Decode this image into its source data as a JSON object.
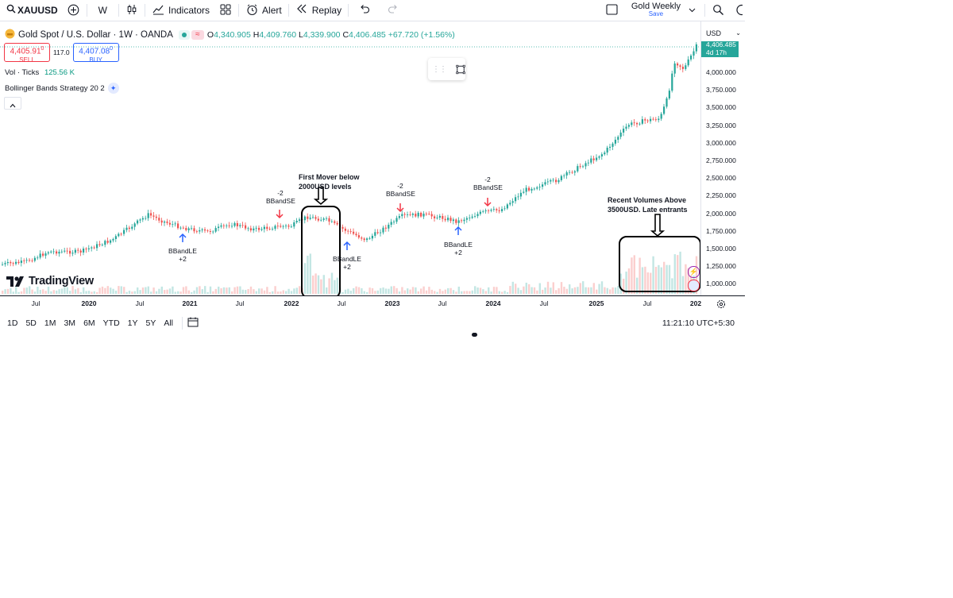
{
  "toolbar": {
    "symbol": "XAUUSD",
    "interval": "W",
    "indicators_label": "Indicators",
    "alert_label": "Alert",
    "replay_label": "Replay",
    "layout_name": "Gold Weekly",
    "save_label": "Save"
  },
  "legend": {
    "title": "Gold Spot / U.S. Dollar · 1W · OANDA",
    "open_label": "O",
    "open": "4,340.905",
    "high_label": "H",
    "high": "4,409.760",
    "low_label": "L",
    "low": "4,339.900",
    "close_label": "C",
    "close": "4,406.485",
    "change": "+67.720 (+1.56%)",
    "sell_price": "4,405.91",
    "sell_sup": "0",
    "sell_label": "SELL",
    "spread": "117.0",
    "buy_price": "4,407.08",
    "buy_sup": "0",
    "buy_label": "BUY",
    "vol_label": "Vol · Ticks",
    "vol_value": "125.56 K",
    "strategy_label": "Bollinger Bands Strategy 20 2"
  },
  "price_scale": {
    "currency": "USD",
    "labels": [
      "4,000.000",
      "3,750.000",
      "3,500.000",
      "3,250.000",
      "3,000.000",
      "2,750.000",
      "2,500.000",
      "2,250.000",
      "2,000.000",
      "1,750.000",
      "1,500.000",
      "1,250.000",
      "1,000.000"
    ],
    "current_price": "4,406.485",
    "countdown": "4d 17h"
  },
  "time_scale": {
    "labels": [
      "Jul",
      "2020",
      "Jul",
      "2021",
      "Jul",
      "2022",
      "Jul",
      "2023",
      "Jul",
      "2024",
      "Jul",
      "2025",
      "Jul",
      "202"
    ]
  },
  "bottom_bar": {
    "ranges": [
      "1D",
      "5D",
      "1M",
      "3M",
      "6M",
      "YTD",
      "1Y",
      "5Y",
      "All"
    ],
    "clock": "11:21:10 UTC+5:30"
  },
  "watermark": "TradingView",
  "annotations": {
    "first_mover": "First Mover below",
    "first_mover_2": "2000USD levels",
    "recent_volumes": "Recent Volumes Above",
    "recent_volumes_2": "3500USD. Late entrants"
  },
  "signals": [
    {
      "label_top": "-2",
      "label_bottom": "BBandSE"
    },
    {
      "label_top": "-2",
      "label_bottom": "BBandSE"
    },
    {
      "label_top": "-2",
      "label_bottom": "BBandSE"
    },
    {
      "label_top": "BBandLE",
      "label_bottom": "+2"
    },
    {
      "label_top": "BBandLE",
      "label_bottom": "+2"
    },
    {
      "label_top": "BBandLE",
      "label_bottom": "+2"
    }
  ],
  "colors": {
    "up": "#26a69a",
    "down": "#ef5350",
    "accent": "#2962ff",
    "sell": "#f23645",
    "price_tag": "#26a69a",
    "signal_up": "#2962ff",
    "signal_down": "#f23645"
  }
}
